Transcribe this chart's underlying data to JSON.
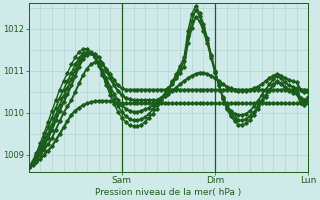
{
  "background_color": "#d0eaea",
  "grid_color": "#b0cccc",
  "line_color_dark": "#1a5c1a",
  "line_color_medium": "#267326",
  "line_color_light": "#33993a",
  "ylabel": "Pression niveau de la mer( hPa )",
  "ylim": [
    1008.6,
    1012.6
  ],
  "yticks": [
    1009,
    1010,
    1011,
    1012
  ],
  "xlabel_ticks": [
    "Sam",
    "Dim",
    "Lun"
  ],
  "xlabel_tick_positions": [
    24,
    48,
    72
  ],
  "total_hours": 72,
  "n_points": 73,
  "series": [
    {
      "color": "#1a5c1a",
      "lw": 1.6,
      "marker": true,
      "values": [
        1008.7,
        1008.75,
        1008.82,
        1008.9,
        1009.0,
        1009.1,
        1009.2,
        1009.35,
        1009.5,
        1009.65,
        1009.8,
        1009.95,
        1010.05,
        1010.12,
        1010.18,
        1010.22,
        1010.25,
        1010.27,
        1010.28,
        1010.28,
        1010.28,
        1010.27,
        1010.25,
        1010.22,
        1010.22,
        1010.22,
        1010.22,
        1010.22,
        1010.22,
        1010.22,
        1010.22,
        1010.22,
        1010.22,
        1010.22,
        1010.22,
        1010.22,
        1010.22,
        1010.22,
        1010.22,
        1010.22,
        1010.22,
        1010.22,
        1010.22,
        1010.22,
        1010.22,
        1010.22,
        1010.22,
        1010.22,
        1010.22,
        1010.22,
        1010.22,
        1010.22,
        1010.22,
        1010.22,
        1010.22,
        1010.22,
        1010.22,
        1010.22,
        1010.22,
        1010.22,
        1010.22,
        1010.22,
        1010.22,
        1010.22,
        1010.22,
        1010.22,
        1010.22,
        1010.22,
        1010.22,
        1010.22,
        1010.22,
        1010.22,
        1010.22
      ]
    },
    {
      "color": "#1a5c1a",
      "lw": 1.4,
      "marker": true,
      "values": [
        1008.7,
        1008.78,
        1008.88,
        1009.0,
        1009.12,
        1009.25,
        1009.4,
        1009.6,
        1009.8,
        1010.0,
        1010.15,
        1010.3,
        1010.5,
        1010.7,
        1010.9,
        1011.05,
        1011.15,
        1011.2,
        1011.2,
        1011.15,
        1011.05,
        1010.92,
        1010.78,
        1010.65,
        1010.58,
        1010.55,
        1010.55,
        1010.55,
        1010.55,
        1010.55,
        1010.55,
        1010.55,
        1010.55,
        1010.55,
        1010.55,
        1010.55,
        1010.55,
        1010.55,
        1010.55,
        1010.55,
        1010.55,
        1010.55,
        1010.55,
        1010.55,
        1010.55,
        1010.55,
        1010.55,
        1010.55,
        1010.55,
        1010.55,
        1010.55,
        1010.55,
        1010.55,
        1010.55,
        1010.55,
        1010.55,
        1010.55,
        1010.55,
        1010.55,
        1010.55,
        1010.55,
        1010.55,
        1010.55,
        1010.55,
        1010.55,
        1010.55,
        1010.55,
        1010.55,
        1010.55,
        1010.55,
        1010.55,
        1010.55,
        1010.55
      ]
    },
    {
      "color": "#1a5c1a",
      "lw": 1.6,
      "marker": true,
      "values": [
        1008.7,
        1008.78,
        1008.9,
        1009.05,
        1009.22,
        1009.4,
        1009.6,
        1009.82,
        1010.05,
        1010.25,
        1010.45,
        1010.65,
        1010.88,
        1011.1,
        1011.28,
        1011.38,
        1011.42,
        1011.4,
        1011.32,
        1011.18,
        1011.0,
        1010.82,
        1010.65,
        1010.52,
        1010.42,
        1010.35,
        1010.32,
        1010.3,
        1010.3,
        1010.3,
        1010.3,
        1010.3,
        1010.3,
        1010.3,
        1010.35,
        1010.4,
        1010.45,
        1010.52,
        1010.6,
        1010.68,
        1010.75,
        1010.82,
        1010.88,
        1010.92,
        1010.95,
        1010.95,
        1010.92,
        1010.88,
        1010.82,
        1010.75,
        1010.68,
        1010.62,
        1010.58,
        1010.55,
        1010.52,
        1010.52,
        1010.52,
        1010.55,
        1010.58,
        1010.62,
        1010.68,
        1010.75,
        1010.82,
        1010.88,
        1010.92,
        1010.88,
        1010.82,
        1010.78,
        1010.75,
        1010.72,
        1010.55,
        1010.5,
        1010.5
      ]
    },
    {
      "color": "#1a5c1a",
      "lw": 1.3,
      "marker": true,
      "values": [
        1008.7,
        1008.8,
        1008.95,
        1009.12,
        1009.3,
        1009.5,
        1009.72,
        1009.95,
        1010.18,
        1010.4,
        1010.6,
        1010.8,
        1011.02,
        1011.2,
        1011.35,
        1011.42,
        1011.42,
        1011.35,
        1011.2,
        1011.02,
        1010.82,
        1010.62,
        1010.45,
        1010.3,
        1010.18,
        1010.1,
        1010.05,
        1010.02,
        1010.02,
        1010.05,
        1010.08,
        1010.12,
        1010.18,
        1010.25,
        1010.35,
        1010.45,
        1010.55,
        1010.68,
        1010.82,
        1010.95,
        1011.1,
        1011.65,
        1012.02,
        1012.28,
        1012.18,
        1011.95,
        1011.65,
        1011.3,
        1010.95,
        1010.65,
        1010.38,
        1010.18,
        1010.05,
        1009.98,
        1009.95,
        1009.95,
        1009.98,
        1010.05,
        1010.15,
        1010.28,
        1010.42,
        1010.55,
        1010.68,
        1010.8,
        1010.88,
        1010.82,
        1010.72,
        1010.65,
        1010.62,
        1010.58,
        1010.35,
        1010.3,
        1010.38
      ]
    },
    {
      "color": "#1a5c1a",
      "lw": 1.2,
      "marker": true,
      "values": [
        1008.7,
        1008.82,
        1009.0,
        1009.2,
        1009.42,
        1009.65,
        1009.88,
        1010.12,
        1010.35,
        1010.55,
        1010.75,
        1010.95,
        1011.15,
        1011.3,
        1011.42,
        1011.45,
        1011.42,
        1011.32,
        1011.15,
        1010.95,
        1010.72,
        1010.52,
        1010.32,
        1010.15,
        1010.02,
        1009.92,
        1009.85,
        1009.82,
        1009.82,
        1009.85,
        1009.9,
        1009.98,
        1010.08,
        1010.18,
        1010.3,
        1010.42,
        1010.58,
        1010.72,
        1010.88,
        1011.05,
        1011.22,
        1011.82,
        1012.18,
        1012.45,
        1012.3,
        1012.05,
        1011.72,
        1011.35,
        1010.98,
        1010.65,
        1010.35,
        1010.12,
        1009.98,
        1009.88,
        1009.82,
        1009.82,
        1009.85,
        1009.92,
        1010.02,
        1010.15,
        1010.3,
        1010.42,
        1010.55,
        1010.68,
        1010.75,
        1010.7,
        1010.62,
        1010.55,
        1010.52,
        1010.48,
        1010.25,
        1010.22,
        1010.32
      ]
    },
    {
      "color": "#1a5c1a",
      "lw": 1.0,
      "marker": true,
      "values": [
        1008.7,
        1008.85,
        1009.05,
        1009.28,
        1009.52,
        1009.78,
        1010.05,
        1010.3,
        1010.55,
        1010.75,
        1010.95,
        1011.15,
        1011.32,
        1011.45,
        1011.52,
        1011.52,
        1011.45,
        1011.32,
        1011.12,
        1010.9,
        1010.65,
        1010.42,
        1010.2,
        1010.02,
        1009.88,
        1009.78,
        1009.7,
        1009.68,
        1009.68,
        1009.72,
        1009.78,
        1009.88,
        1009.98,
        1010.1,
        1010.25,
        1010.4,
        1010.58,
        1010.75,
        1010.92,
        1011.12,
        1011.32,
        1011.95,
        1012.35,
        1012.55,
        1012.38,
        1012.12,
        1011.78,
        1011.38,
        1011.0,
        1010.65,
        1010.32,
        1010.08,
        1009.92,
        1009.8,
        1009.72,
        1009.72,
        1009.75,
        1009.82,
        1009.95,
        1010.1,
        1010.25,
        1010.38,
        1010.52,
        1010.65,
        1010.72,
        1010.68,
        1010.58,
        1010.52,
        1010.48,
        1010.45,
        1010.22,
        1010.18,
        1010.28
      ]
    }
  ]
}
